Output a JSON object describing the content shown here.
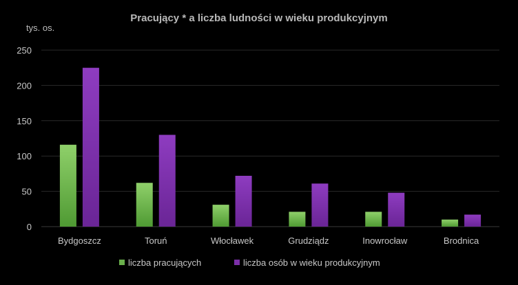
{
  "chart_data": {
    "type": "bar",
    "title": "Pracujący * a liczba ludności w wieku produkcyjnym",
    "ylabel": "tys. os.",
    "xlabel": "",
    "ylim": [
      0,
      250
    ],
    "yticks": [
      "0",
      "50",
      "100",
      "150",
      "200",
      "250"
    ],
    "grid": true,
    "legend_position": "bottom",
    "categories": [
      "Bydgoszcz",
      "Toruń",
      "Włocławek",
      "Grudziądz",
      "Inowrocław",
      "Brodnica"
    ],
    "series": [
      {
        "name": "liczba pracujących",
        "color": "#6ab04c",
        "values": [
          116,
          62,
          31,
          21,
          21,
          10
        ]
      },
      {
        "name": "liczba osób w wieku produkcyjnym",
        "color": "#7b2fa8",
        "values": [
          225,
          130,
          72,
          61,
          48,
          17
        ]
      }
    ]
  }
}
